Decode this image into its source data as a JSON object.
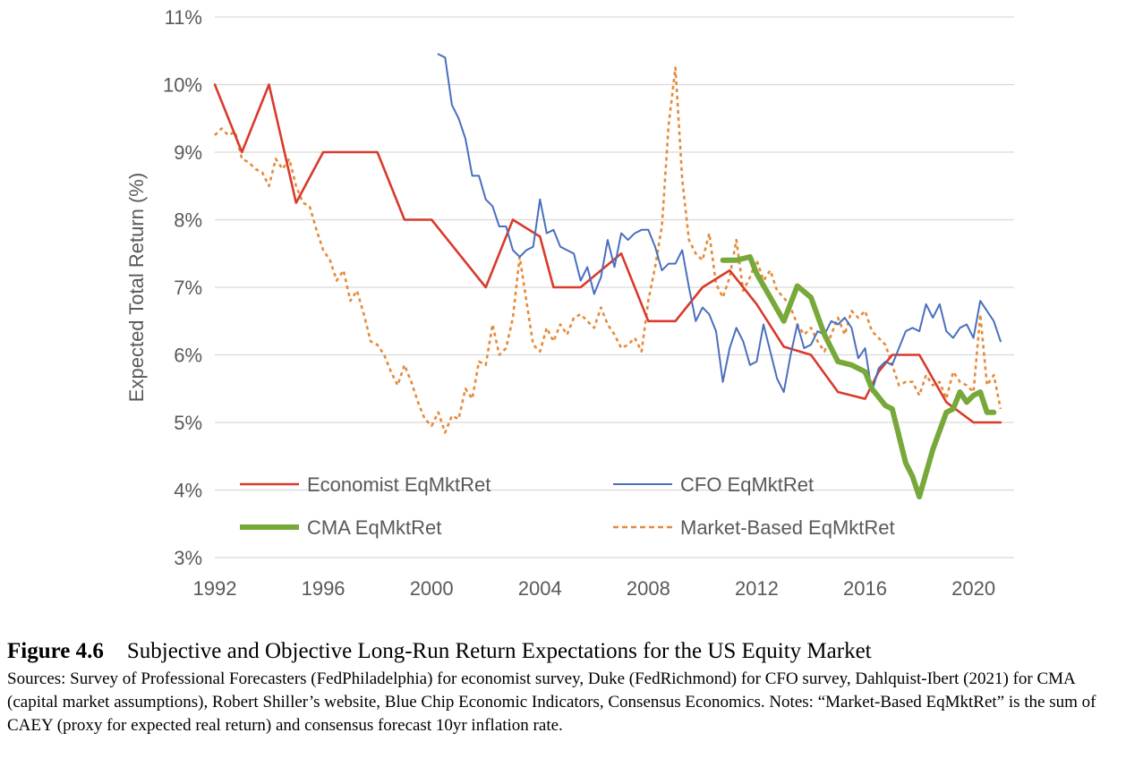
{
  "chart_data": {
    "type": "line",
    "ylabel": "Expected Total Return (%)",
    "xlabel": "",
    "xlim": [
      1992,
      2021.5
    ],
    "ylim": [
      3,
      11
    ],
    "x_ticks": [
      1992,
      1996,
      2000,
      2004,
      2008,
      2012,
      2016,
      2020
    ],
    "x_tick_labels": [
      "1992",
      "1996",
      "2000",
      "2004",
      "2008",
      "2012",
      "2016",
      "2020"
    ],
    "y_ticks": [
      3,
      4,
      5,
      6,
      7,
      8,
      9,
      10,
      11
    ],
    "y_tick_labels": [
      "3%",
      "4%",
      "5%",
      "6%",
      "7%",
      "8%",
      "9%",
      "10%",
      "11%"
    ],
    "grid": "horizontal",
    "legend_position": "inside-bottom",
    "series": [
      {
        "name": "Economist EqMktRet",
        "color": "#d93a2b",
        "style": "solid",
        "width": "normal",
        "points": [
          [
            1992,
            10
          ],
          [
            1993,
            9
          ],
          [
            1994,
            10
          ],
          [
            1995,
            8.25
          ],
          [
            1996,
            9
          ],
          [
            1998,
            9
          ],
          [
            1999,
            8
          ],
          [
            2000,
            8
          ],
          [
            2002,
            7
          ],
          [
            2003,
            8
          ],
          [
            2004,
            7.75
          ],
          [
            2004.5,
            7
          ],
          [
            2005.5,
            7
          ],
          [
            2007,
            7.5
          ],
          [
            2008,
            6.5
          ],
          [
            2009,
            6.5
          ],
          [
            2010,
            7
          ],
          [
            2011,
            7.25
          ],
          [
            2012,
            6.75
          ],
          [
            2013,
            6.12
          ],
          [
            2014,
            6
          ],
          [
            2015,
            5.45
          ],
          [
            2016,
            5.35
          ],
          [
            2016.5,
            5.75
          ],
          [
            2017,
            6
          ],
          [
            2018,
            6
          ],
          [
            2019,
            5.3
          ],
          [
            2020,
            5
          ],
          [
            2021,
            5
          ]
        ]
      },
      {
        "name": "CFO EqMktRet",
        "color": "#4a6fbd",
        "style": "solid",
        "width": "thin",
        "points": [
          [
            2000.25,
            10.45
          ],
          [
            2000.5,
            10.4
          ],
          [
            2000.75,
            9.7
          ],
          [
            2001,
            9.5
          ],
          [
            2001.25,
            9.2
          ],
          [
            2001.5,
            8.65
          ],
          [
            2001.75,
            8.65
          ],
          [
            2002,
            8.3
          ],
          [
            2002.25,
            8.2
          ],
          [
            2002.5,
            7.9
          ],
          [
            2002.75,
            7.9
          ],
          [
            2003,
            7.55
          ],
          [
            2003.25,
            7.45
          ],
          [
            2003.5,
            7.55
          ],
          [
            2003.75,
            7.6
          ],
          [
            2004,
            8.3
          ],
          [
            2004.25,
            7.8
          ],
          [
            2004.5,
            7.85
          ],
          [
            2004.75,
            7.6
          ],
          [
            2005,
            7.55
          ],
          [
            2005.25,
            7.5
          ],
          [
            2005.5,
            7.1
          ],
          [
            2005.75,
            7.3
          ],
          [
            2006,
            6.9
          ],
          [
            2006.25,
            7.15
          ],
          [
            2006.5,
            7.7
          ],
          [
            2006.75,
            7.3
          ],
          [
            2007,
            7.8
          ],
          [
            2007.25,
            7.7
          ],
          [
            2007.5,
            7.8
          ],
          [
            2007.75,
            7.85
          ],
          [
            2008,
            7.85
          ],
          [
            2008.25,
            7.6
          ],
          [
            2008.5,
            7.25
          ],
          [
            2008.75,
            7.35
          ],
          [
            2009,
            7.35
          ],
          [
            2009.25,
            7.55
          ],
          [
            2009.5,
            7
          ],
          [
            2009.75,
            6.5
          ],
          [
            2010,
            6.7
          ],
          [
            2010.25,
            6.6
          ],
          [
            2010.5,
            6.35
          ],
          [
            2010.75,
            5.6
          ],
          [
            2011,
            6.1
          ],
          [
            2011.25,
            6.4
          ],
          [
            2011.5,
            6.2
          ],
          [
            2011.75,
            5.85
          ],
          [
            2012,
            5.9
          ],
          [
            2012.25,
            6.45
          ],
          [
            2012.5,
            6.05
          ],
          [
            2012.75,
            5.65
          ],
          [
            2013,
            5.45
          ],
          [
            2013.25,
            6
          ],
          [
            2013.5,
            6.45
          ],
          [
            2013.75,
            6.1
          ],
          [
            2014,
            6.15
          ],
          [
            2014.25,
            6.35
          ],
          [
            2014.5,
            6.3
          ],
          [
            2014.75,
            6.5
          ],
          [
            2015,
            6.45
          ],
          [
            2015.25,
            6.55
          ],
          [
            2015.5,
            6.4
          ],
          [
            2015.75,
            5.95
          ],
          [
            2016,
            6.1
          ],
          [
            2016.25,
            5.45
          ],
          [
            2016.5,
            5.8
          ],
          [
            2016.75,
            5.9
          ],
          [
            2017,
            5.85
          ],
          [
            2017.25,
            6.1
          ],
          [
            2017.5,
            6.35
          ],
          [
            2017.75,
            6.4
          ],
          [
            2018,
            6.35
          ],
          [
            2018.25,
            6.75
          ],
          [
            2018.5,
            6.55
          ],
          [
            2018.75,
            6.75
          ],
          [
            2019,
            6.35
          ],
          [
            2019.25,
            6.25
          ],
          [
            2019.5,
            6.4
          ],
          [
            2019.75,
            6.45
          ],
          [
            2020,
            6.25
          ],
          [
            2020.25,
            6.8
          ],
          [
            2020.5,
            6.65
          ],
          [
            2020.75,
            6.5
          ],
          [
            2021,
            6.2
          ]
        ]
      },
      {
        "name": "CMA EqMktRet",
        "color": "#76a83a",
        "style": "solid",
        "width": "thick",
        "points": [
          [
            2010.75,
            7.4
          ],
          [
            2011.25,
            7.4
          ],
          [
            2011.75,
            7.45
          ],
          [
            2012,
            7.2
          ],
          [
            2012.5,
            6.85
          ],
          [
            2013,
            6.5
          ],
          [
            2013.5,
            7.02
          ],
          [
            2014,
            6.85
          ],
          [
            2014.5,
            6.3
          ],
          [
            2015,
            5.9
          ],
          [
            2015.5,
            5.85
          ],
          [
            2016,
            5.75
          ],
          [
            2016.25,
            5.5
          ],
          [
            2016.75,
            5.25
          ],
          [
            2017,
            5.2
          ],
          [
            2017.5,
            4.4
          ],
          [
            2017.75,
            4.2
          ],
          [
            2018,
            3.9
          ],
          [
            2018.5,
            4.6
          ],
          [
            2019,
            5.15
          ],
          [
            2019.25,
            5.2
          ],
          [
            2019.5,
            5.45
          ],
          [
            2019.75,
            5.3
          ],
          [
            2020,
            5.4
          ],
          [
            2020.25,
            5.45
          ],
          [
            2020.5,
            5.15
          ],
          [
            2020.75,
            5.15
          ]
        ]
      },
      {
        "name": "Market-Based EqMktRet",
        "color": "#e68a3a",
        "style": "dashed",
        "width": "normal",
        "points": [
          [
            1992,
            9.25
          ],
          [
            1992.25,
            9.35
          ],
          [
            1992.5,
            9.25
          ],
          [
            1992.75,
            9.3
          ],
          [
            1993,
            8.9
          ],
          [
            1993.25,
            8.85
          ],
          [
            1993.5,
            8.75
          ],
          [
            1993.75,
            8.7
          ],
          [
            1994,
            8.5
          ],
          [
            1994.25,
            8.9
          ],
          [
            1994.5,
            8.75
          ],
          [
            1994.75,
            8.9
          ],
          [
            1995,
            8.5
          ],
          [
            1995.25,
            8.25
          ],
          [
            1995.5,
            8.2
          ],
          [
            1995.75,
            7.85
          ],
          [
            1996,
            7.55
          ],
          [
            1996.25,
            7.4
          ],
          [
            1996.5,
            7.1
          ],
          [
            1996.75,
            7.25
          ],
          [
            1997,
            6.8
          ],
          [
            1997.25,
            6.95
          ],
          [
            1997.5,
            6.6
          ],
          [
            1997.75,
            6.2
          ],
          [
            1998,
            6.15
          ],
          [
            1998.25,
            6
          ],
          [
            1998.5,
            5.75
          ],
          [
            1998.75,
            5.55
          ],
          [
            1999,
            5.85
          ],
          [
            1999.25,
            5.6
          ],
          [
            1999.5,
            5.3
          ],
          [
            1999.75,
            5.05
          ],
          [
            2000,
            4.95
          ],
          [
            2000.25,
            5.15
          ],
          [
            2000.5,
            4.85
          ],
          [
            2000.75,
            5.1
          ],
          [
            2001,
            5.05
          ],
          [
            2001.25,
            5.5
          ],
          [
            2001.5,
            5.35
          ],
          [
            2001.75,
            5.9
          ],
          [
            2002,
            5.85
          ],
          [
            2002.25,
            6.45
          ],
          [
            2002.5,
            6
          ],
          [
            2002.75,
            6.1
          ],
          [
            2003,
            6.55
          ],
          [
            2003.25,
            7.45
          ],
          [
            2003.5,
            6.8
          ],
          [
            2003.75,
            6.15
          ],
          [
            2004,
            6.05
          ],
          [
            2004.25,
            6.4
          ],
          [
            2004.5,
            6.2
          ],
          [
            2004.75,
            6.45
          ],
          [
            2005,
            6.3
          ],
          [
            2005.25,
            6.55
          ],
          [
            2005.5,
            6.6
          ],
          [
            2005.75,
            6.5
          ],
          [
            2006,
            6.4
          ],
          [
            2006.25,
            6.7
          ],
          [
            2006.5,
            6.45
          ],
          [
            2006.75,
            6.3
          ],
          [
            2007,
            6.1
          ],
          [
            2007.25,
            6.15
          ],
          [
            2007.5,
            6.25
          ],
          [
            2007.75,
            6.05
          ],
          [
            2008,
            6.8
          ],
          [
            2008.25,
            7.3
          ],
          [
            2008.5,
            7.9
          ],
          [
            2008.75,
            9.4
          ],
          [
            2009,
            10.25
          ],
          [
            2009.25,
            8.6
          ],
          [
            2009.5,
            7.7
          ],
          [
            2009.75,
            7.5
          ],
          [
            2010,
            7.4
          ],
          [
            2010.25,
            7.8
          ],
          [
            2010.5,
            7.05
          ],
          [
            2010.75,
            6.85
          ],
          [
            2011,
            7.15
          ],
          [
            2011.25,
            7.7
          ],
          [
            2011.5,
            6.95
          ],
          [
            2011.75,
            7.15
          ],
          [
            2012,
            7.4
          ],
          [
            2012.25,
            7.1
          ],
          [
            2012.5,
            7.25
          ],
          [
            2012.75,
            6.95
          ],
          [
            2013,
            6.85
          ],
          [
            2013.25,
            6.7
          ],
          [
            2013.5,
            6.45
          ],
          [
            2013.75,
            6.3
          ],
          [
            2014,
            6.4
          ],
          [
            2014.25,
            6.2
          ],
          [
            2014.5,
            6.05
          ],
          [
            2014.75,
            6.3
          ],
          [
            2015,
            6.55
          ],
          [
            2015.25,
            6.3
          ],
          [
            2015.5,
            6.65
          ],
          [
            2015.75,
            6.55
          ],
          [
            2016,
            6.65
          ],
          [
            2016.25,
            6.35
          ],
          [
            2016.5,
            6.25
          ],
          [
            2016.75,
            6.15
          ],
          [
            2017,
            5.85
          ],
          [
            2017.25,
            5.55
          ],
          [
            2017.5,
            5.6
          ],
          [
            2017.75,
            5.6
          ],
          [
            2018,
            5.4
          ],
          [
            2018.25,
            5.7
          ],
          [
            2018.5,
            5.55
          ],
          [
            2018.75,
            5.6
          ],
          [
            2019,
            5.35
          ],
          [
            2019.25,
            5.75
          ],
          [
            2019.5,
            5.6
          ],
          [
            2019.75,
            5.55
          ],
          [
            2020,
            5.45
          ],
          [
            2020.25,
            6.6
          ],
          [
            2020.5,
            5.55
          ],
          [
            2020.75,
            5.7
          ],
          [
            2021,
            5.2
          ]
        ]
      }
    ]
  },
  "caption": {
    "figure_label": "Figure 4.6",
    "title": "Subjective and Objective Long-Run Return Expectations for the US Equity Market",
    "body": "Sources: Survey of Professional Forecasters (FedPhiladelphia) for economist survey, Duke (FedRichmond) for CFO survey, Dahlquist-Ibert (2021) for CMA (capital market assumptions), Robert Shiller’s website, Blue Chip Economic Indicators, Consensus Economics. Notes: “Market-Based EqMktRet” is the sum of CAEY (proxy for expected real return) and consensus forecast 10yr inflation rate."
  }
}
